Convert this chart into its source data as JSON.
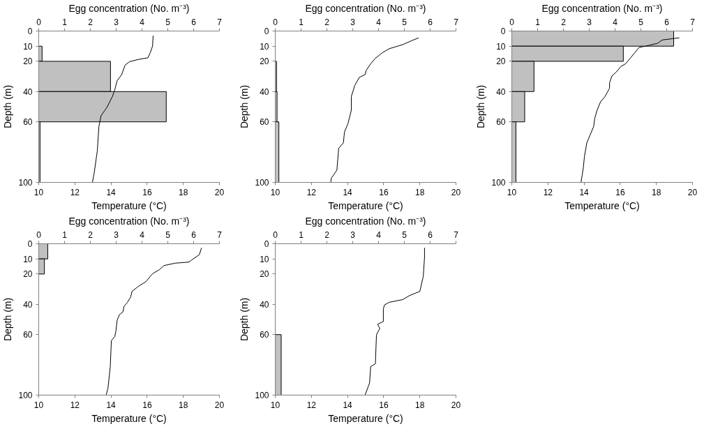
{
  "chart_data": [
    {
      "type": "histogram",
      "orientation": "horizontal",
      "x2label": "Egg concentration (No. m⁻³)",
      "xlabel": "Temperature (°C)",
      "ylabel": "Depth (m)",
      "ylim": [
        100,
        0
      ],
      "yticks": [
        0,
        10,
        20,
        40,
        60,
        100
      ],
      "xlim": [
        10,
        20
      ],
      "xticks": [
        10,
        12,
        14,
        16,
        18,
        20
      ],
      "x2lim": [
        0,
        7
      ],
      "x2ticks": [
        0,
        1,
        2,
        3,
        4,
        5,
        6,
        7
      ],
      "series": [
        {
          "axis": "x2",
          "color": "#c0c0c0",
          "bins": [
            0,
            10,
            20,
            40,
            60,
            100
          ],
          "values": [
            0,
            0.13,
            2.78,
            4.94,
            0.05
          ]
        },
        {
          "type": "line",
          "color": "#000000",
          "x": [
            3.1,
            9.9,
            14.4,
            17.7,
            18.7,
            20.2,
            22.5,
            28.8,
            32.8,
            38.7,
            43.2,
            50.5,
            55.9,
            63.1,
            79.3,
            93.7,
            100
          ],
          "values": [
            16.33,
            16.3,
            16.17,
            16.04,
            15.54,
            15.03,
            14.78,
            14.59,
            14.34,
            14.21,
            14.08,
            13.77,
            13.45,
            13.33,
            13.24,
            13.07,
            12.97
          ]
        }
      ]
    },
    {
      "type": "histogram",
      "orientation": "horizontal",
      "x2label": "Egg concentration (No. m⁻³)",
      "xlabel": "Temperature (°C)",
      "ylabel": "Depth (m)",
      "ylim": [
        100,
        0
      ],
      "yticks": [
        0,
        10,
        20,
        40,
        60,
        100
      ],
      "xlim": [
        10,
        20
      ],
      "xticks": [
        10,
        12,
        14,
        16,
        18,
        20
      ],
      "x2lim": [
        0,
        7
      ],
      "x2ticks": [
        0,
        1,
        2,
        3,
        4,
        5,
        6,
        7
      ],
      "series": [
        {
          "axis": "x2",
          "color": "#c0c0c0",
          "bins": [
            0,
            10,
            20,
            40,
            60,
            100
          ],
          "values": [
            0,
            0,
            0.05,
            0.07,
            0.14
          ]
        },
        {
          "type": "line",
          "color": "#000000",
          "x": [
            4.5,
            6.3,
            9,
            11.7,
            14.4,
            18,
            21.6,
            26.1,
            28.8,
            30.6,
            36,
            43.2,
            52.3,
            61.3,
            66.7,
            73.9,
            77.5,
            91.9,
            97.3,
            100
          ],
          "values": [
            17.94,
            17.56,
            17.05,
            16.3,
            15.92,
            15.54,
            15.28,
            15.03,
            14.97,
            14.65,
            14.4,
            14.21,
            14.21,
            14.02,
            13.83,
            13.77,
            13.51,
            13.41,
            13.1,
            13.07
          ]
        }
      ]
    },
    {
      "type": "histogram",
      "orientation": "horizontal",
      "x2label": "Egg concentration (No. m⁻³)",
      "xlabel": "Temperature (°C)",
      "ylabel": "Depth (m)",
      "ylim": [
        100,
        0
      ],
      "yticks": [
        0,
        10,
        20,
        40,
        60,
        100
      ],
      "xlim": [
        10,
        20
      ],
      "xticks": [
        10,
        12,
        14,
        16,
        18,
        20
      ],
      "x2lim": [
        0,
        7
      ],
      "x2ticks": [
        0,
        1,
        2,
        3,
        4,
        5,
        6,
        7
      ],
      "series": [
        {
          "axis": "x2",
          "color": "#c0c0c0",
          "bins": [
            0,
            10,
            20,
            40,
            60,
            100
          ],
          "values": [
            6.27,
            4.32,
            0.86,
            0.5,
            0.16
          ]
        },
        {
          "type": "line",
          "color": "#000000",
          "x": [
            4.5,
            5.9,
            8.1,
            9.9,
            10.8,
            14.4,
            18,
            21.6,
            23.4,
            27,
            29.7,
            34.2,
            37.8,
            43.2,
            46.8,
            52.3,
            57.7,
            63.1,
            68.5,
            73.9,
            82.9,
            90.1,
            95.5,
            100
          ],
          "values": [
            19.27,
            18.32,
            18.07,
            17.43,
            17.05,
            16.8,
            16.55,
            16.3,
            16.04,
            15.79,
            15.54,
            15.41,
            15.41,
            15.16,
            14.91,
            14.72,
            14.59,
            14.53,
            14.34,
            14.15,
            14.02,
            13.96,
            13.89,
            13.83
          ]
        }
      ]
    },
    {
      "type": "histogram",
      "orientation": "horizontal",
      "x2label": "Egg concentration (No. m⁻³)",
      "xlabel": "Temperature (°C)",
      "ylabel": "Depth (m)",
      "ylim": [
        100,
        0
      ],
      "yticks": [
        0,
        10,
        20,
        40,
        60,
        100
      ],
      "xlim": [
        10,
        20
      ],
      "xticks": [
        10,
        12,
        14,
        16,
        18,
        20
      ],
      "x2lim": [
        0,
        7
      ],
      "x2ticks": [
        0,
        1,
        2,
        3,
        4,
        5,
        6,
        7
      ],
      "series": [
        {
          "axis": "x2",
          "color": "#c0c0c0",
          "bins": [
            0,
            10,
            20,
            40,
            60,
            100
          ],
          "values": [
            0.35,
            0.22,
            0,
            0,
            0
          ]
        },
        {
          "type": "line",
          "color": "#000000",
          "x": [
            2.7,
            7.2,
            10.8,
            12.1,
            12.8,
            14.4,
            17.1,
            19.8,
            21.6,
            25.2,
            27.9,
            31.5,
            35.1,
            38.7,
            41.4,
            45,
            46.8,
            50.5,
            57.7,
            61.3,
            64,
            81.1,
            95.5,
            100
          ],
          "values": [
            19.01,
            18.89,
            18.45,
            18.32,
            17.56,
            16.93,
            16.68,
            16.3,
            16.17,
            15.92,
            15.54,
            15.16,
            15.09,
            14.91,
            14.72,
            14.66,
            14.47,
            14.34,
            14.27,
            14.21,
            14.02,
            13.96,
            13.83,
            13.73
          ]
        }
      ]
    },
    {
      "type": "histogram",
      "orientation": "horizontal",
      "x2label": "Egg concentration (No. m⁻³)",
      "xlabel": "Temperature (°C)",
      "ylabel": "Depth (m)",
      "ylim": [
        100,
        0
      ],
      "yticks": [
        0,
        10,
        20,
        40,
        60,
        100
      ],
      "xlim": [
        10,
        20
      ],
      "xticks": [
        10,
        12,
        14,
        16,
        18,
        20
      ],
      "x2lim": [
        0,
        7
      ],
      "x2ticks": [
        0,
        1,
        2,
        3,
        4,
        5,
        6,
        7
      ],
      "series": [
        {
          "axis": "x2",
          "color": "#c0c0c0",
          "bins": [
            0,
            10,
            20,
            40,
            60,
            100
          ],
          "values": [
            0,
            0,
            0,
            0,
            0.23
          ]
        },
        {
          "type": "line",
          "color": "#000000",
          "x": [
            2.7,
            9,
            21.6,
            31.5,
            34.2,
            36.9,
            38.7,
            40.5,
            43.2,
            51.4,
            53.2,
            55.9,
            58.6,
            60.3,
            79.3,
            81.1,
            91.9,
            100
          ],
          "values": [
            18.26,
            18.26,
            18.19,
            18.0,
            17.43,
            17.05,
            16.3,
            16.04,
            15.98,
            15.98,
            15.66,
            15.79,
            15.66,
            15.6,
            15.54,
            15.28,
            15.22,
            14.97
          ]
        }
      ]
    }
  ]
}
